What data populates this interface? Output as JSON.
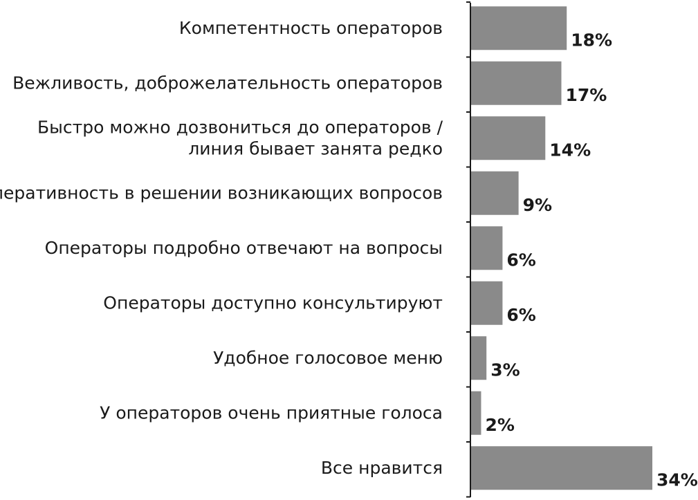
{
  "chart_data": {
    "type": "bar",
    "orientation": "horizontal",
    "unit": "%",
    "xlim": [
      0,
      34
    ],
    "categories": [
      [
        "Компетентность операторов"
      ],
      [
        "Вежливость, доброжелательность операторов"
      ],
      [
        "Быстро можно дозвониться до операторов /",
        "линия бывает занята редко"
      ],
      [
        "Оперативность в решении возникающих вопросов"
      ],
      [
        "Операторы подробно отвечают на вопросы"
      ],
      [
        "Операторы доступно консультируют"
      ],
      [
        "Удобное голосовое меню"
      ],
      [
        "У операторов очень приятные голоса"
      ],
      [
        "Все нравится"
      ]
    ],
    "values": [
      18,
      17,
      14,
      9,
      6,
      6,
      3,
      2,
      34
    ],
    "value_labels": [
      "18%",
      "17%",
      "14%",
      "9%",
      "6%",
      "6%",
      "3%",
      "2%",
      "34%"
    ],
    "colors": {
      "bar": "#8a8a8a",
      "text": "#1a1a1a",
      "axis": "#1a1a1a"
    }
  }
}
